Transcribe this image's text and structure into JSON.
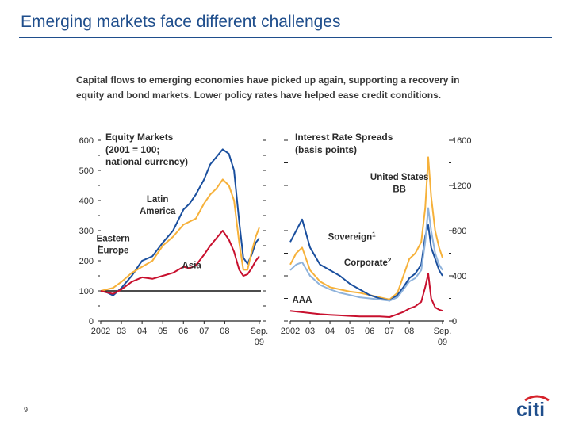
{
  "header": {
    "title": "Emerging markets face different challenges"
  },
  "caption": "Capital flows to emerging economies have picked up again, supporting a recovery in equity and bond markets. Lower policy rates have helped ease credit conditions.",
  "footer": {
    "page_number": "9",
    "logo_text": "citi"
  },
  "colors": {
    "title": "#1f4e8c",
    "latin_america": "#1a4f9e",
    "eastern_europe": "#f6b13a",
    "asia": "#c8102e",
    "us_bb": "#f6b13a",
    "sovereign": "#1a4f9e",
    "corporate": "#8fb3dc",
    "aaa": "#c8102e",
    "logo_arc": "#d6232b",
    "logo_text": "#1f4e8c"
  },
  "chart_data": [
    {
      "type": "line",
      "title": "Equity Markets",
      "subtitle": [
        "(2001 = 100;",
        "national currency)"
      ],
      "ylim": [
        0,
        600
      ],
      "yticks": [
        0,
        100,
        200,
        300,
        400,
        500,
        600
      ],
      "xlim": [
        2002,
        2009.75
      ],
      "xticks": [
        {
          "x": 2002,
          "label": "2002"
        },
        {
          "x": 2003,
          "label": "03"
        },
        {
          "x": 2004,
          "label": "04"
        },
        {
          "x": 2005,
          "label": "05"
        },
        {
          "x": 2006,
          "label": "06"
        },
        {
          "x": 2007,
          "label": "07"
        },
        {
          "x": 2008,
          "label": "08"
        },
        {
          "x": 2009.67,
          "label": "Sep."
        }
      ],
      "xtick_sublabel": {
        "x": 2009.67,
        "label": "09"
      },
      "reference_line": 100,
      "series": [
        {
          "name": "Latin America",
          "key": "latin_america",
          "x": [
            2002,
            2002.3,
            2002.6,
            2003,
            2003.5,
            2004,
            2004.5,
            2005,
            2005.5,
            2006,
            2006.3,
            2006.6,
            2007,
            2007.3,
            2007.6,
            2007.9,
            2008.2,
            2008.45,
            2008.7,
            2008.9,
            2009.1,
            2009.3,
            2009.5,
            2009.67
          ],
          "values": [
            100,
            95,
            85,
            110,
            150,
            200,
            215,
            260,
            300,
            370,
            390,
            420,
            470,
            520,
            545,
            570,
            555,
            500,
            330,
            210,
            190,
            220,
            260,
            275
          ]
        },
        {
          "name": "Eastern Europe",
          "key": "eastern_europe",
          "x": [
            2002,
            2002.3,
            2002.6,
            2003,
            2003.5,
            2004,
            2004.5,
            2005,
            2005.5,
            2006,
            2006.3,
            2006.6,
            2007,
            2007.3,
            2007.6,
            2007.9,
            2008.2,
            2008.45,
            2008.7,
            2008.9,
            2009.1,
            2009.3,
            2009.5,
            2009.67
          ],
          "values": [
            100,
            105,
            110,
            130,
            160,
            180,
            200,
            250,
            280,
            320,
            330,
            340,
            390,
            420,
            440,
            470,
            450,
            400,
            260,
            170,
            170,
            230,
            280,
            310
          ]
        },
        {
          "name": "Asia",
          "key": "asia",
          "x": [
            2002,
            2002.3,
            2002.6,
            2003,
            2003.5,
            2004,
            2004.5,
            2005,
            2005.5,
            2006,
            2006.3,
            2006.6,
            2007,
            2007.3,
            2007.6,
            2007.9,
            2008.2,
            2008.45,
            2008.7,
            2008.9,
            2009.1,
            2009.3,
            2009.5,
            2009.67
          ],
          "values": [
            100,
            95,
            90,
            105,
            130,
            145,
            140,
            150,
            160,
            180,
            175,
            185,
            220,
            250,
            275,
            300,
            270,
            230,
            170,
            150,
            155,
            175,
            200,
            215
          ]
        }
      ],
      "annotations": [
        {
          "text": "Latin",
          "x": 2004.75,
          "y": 395
        },
        {
          "text": "America",
          "x": 2004.75,
          "y": 355
        },
        {
          "text": "Eastern",
          "x": 2002.6,
          "y": 265
        },
        {
          "text": "Europe",
          "x": 2002.6,
          "y": 225
        },
        {
          "text": "Asia",
          "x": 2006.4,
          "y": 175
        }
      ]
    },
    {
      "type": "line",
      "title": "Interest Rate Spreads",
      "subtitle": [
        "(basis points)"
      ],
      "ylim": [
        0,
        1600
      ],
      "yticks": [
        0,
        400,
        800,
        1200,
        1600
      ],
      "xlim": [
        2002,
        2009.75
      ],
      "xticks": [
        {
          "x": 2002,
          "label": "2002"
        },
        {
          "x": 2003,
          "label": "03"
        },
        {
          "x": 2004,
          "label": "04"
        },
        {
          "x": 2005,
          "label": "05"
        },
        {
          "x": 2006,
          "label": "06"
        },
        {
          "x": 2007,
          "label": "07"
        },
        {
          "x": 2008,
          "label": "08"
        },
        {
          "x": 2009.67,
          "label": "Sep."
        }
      ],
      "xtick_sublabel": {
        "x": 2009.67,
        "label": "09"
      },
      "series": [
        {
          "name": "United States BB",
          "key": "us_bb",
          "x": [
            2002,
            2002.3,
            2002.6,
            2003,
            2003.5,
            2004,
            2004.5,
            2005,
            2005.5,
            2006,
            2006.5,
            2007,
            2007.4,
            2007.7,
            2008,
            2008.3,
            2008.6,
            2008.8,
            2008.95,
            2009.1,
            2009.3,
            2009.5,
            2009.67
          ],
          "values": [
            500,
            600,
            650,
            450,
            350,
            300,
            280,
            260,
            250,
            230,
            210,
            190,
            250,
            400,
            550,
            600,
            700,
            1000,
            1450,
            1100,
            800,
            650,
            560
          ]
        },
        {
          "name": "Sovereign",
          "key": "sovereign",
          "x": [
            2002,
            2002.3,
            2002.6,
            2003,
            2003.5,
            2004,
            2004.5,
            2005,
            2005.5,
            2006,
            2006.5,
            2007,
            2007.4,
            2007.7,
            2008,
            2008.3,
            2008.6,
            2008.8,
            2008.95,
            2009.1,
            2009.3,
            2009.5,
            2009.67
          ],
          "values": [
            700,
            800,
            900,
            650,
            500,
            450,
            400,
            330,
            280,
            230,
            200,
            180,
            230,
            300,
            380,
            420,
            500,
            750,
            850,
            650,
            550,
            450,
            400
          ]
        },
        {
          "name": "Corporate",
          "key": "corporate",
          "x": [
            2002,
            2002.3,
            2002.6,
            2003,
            2003.5,
            2004,
            2004.5,
            2005,
            2005.5,
            2006,
            2006.5,
            2007,
            2007.4,
            2007.7,
            2008,
            2008.3,
            2008.6,
            2008.8,
            2008.95,
            2009.1,
            2009.3,
            2009.5,
            2009.67
          ],
          "values": [
            450,
            500,
            520,
            400,
            320,
            280,
            250,
            230,
            210,
            200,
            190,
            180,
            210,
            280,
            350,
            380,
            450,
            700,
            1000,
            800,
            600,
            500,
            450
          ]
        },
        {
          "name": "AAA",
          "key": "aaa",
          "x": [
            2002,
            2002.5,
            2003,
            2003.5,
            2004,
            2004.5,
            2005,
            2005.5,
            2006,
            2006.5,
            2007,
            2007.4,
            2007.7,
            2008,
            2008.3,
            2008.6,
            2008.8,
            2008.95,
            2009.1,
            2009.3,
            2009.5,
            2009.67
          ],
          "values": [
            90,
            80,
            70,
            60,
            55,
            50,
            45,
            40,
            40,
            40,
            35,
            60,
            80,
            110,
            130,
            170,
            300,
            420,
            200,
            120,
            100,
            90
          ]
        }
      ],
      "annotations": [
        {
          "text": "United States",
          "x": 2007.5,
          "y": 1250
        },
        {
          "text": "BB",
          "x": 2007.5,
          "y": 1140
        },
        {
          "text": "Sovereign",
          "x": 2005.1,
          "y": 720,
          "sup": "1"
        },
        {
          "text": "Corporate",
          "x": 2005.9,
          "y": 490,
          "sup": "2"
        },
        {
          "text": "AAA",
          "x": 2002.6,
          "y": 160
        }
      ]
    }
  ]
}
